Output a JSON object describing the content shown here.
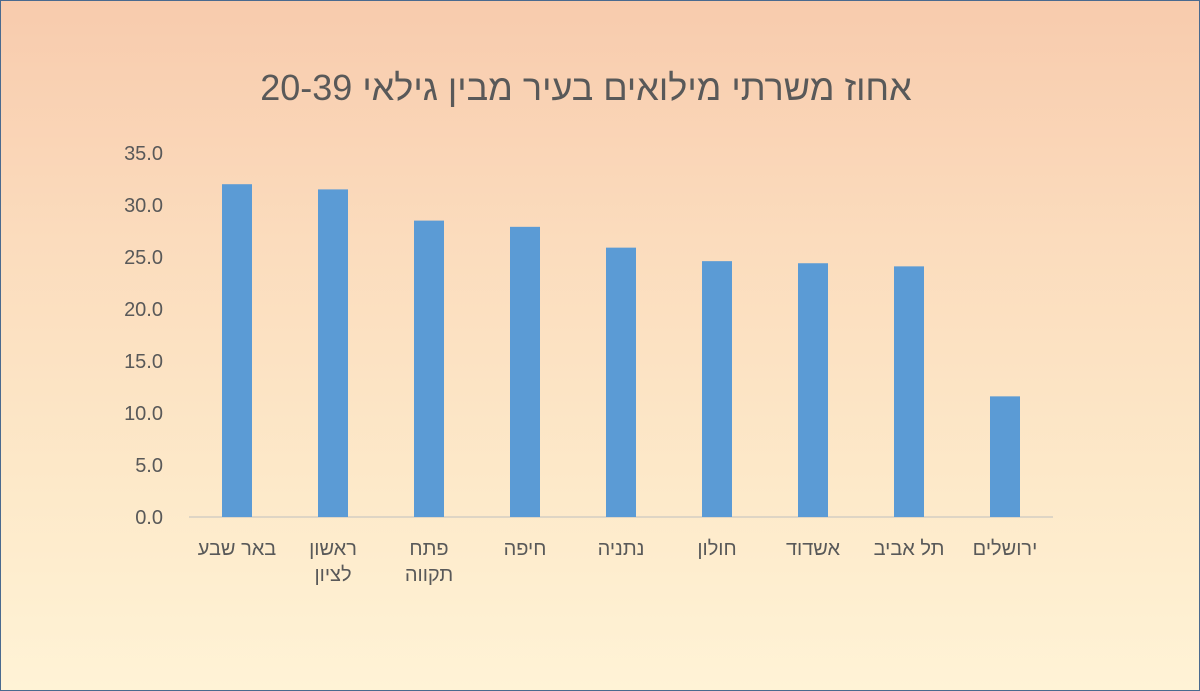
{
  "chart_data": {
    "type": "bar",
    "title": "אחוז משרתי מילואים בעיר מבין גילאי 20-39",
    "categories": [
      [
        "באר שבע"
      ],
      [
        "ראשון",
        "לציון"
      ],
      [
        "פתח",
        "תקווה"
      ],
      [
        "חיפה"
      ],
      [
        "נתניה"
      ],
      [
        "חולון"
      ],
      [
        "אשדוד"
      ],
      [
        "תל אביב"
      ],
      [
        "ירושלים"
      ]
    ],
    "values": [
      32.0,
      31.5,
      28.5,
      27.9,
      25.9,
      24.6,
      24.4,
      24.1,
      11.6
    ],
    "ylim": [
      0,
      35
    ],
    "yticks": [
      "0.0",
      "5.0",
      "10.0",
      "15.0",
      "20.0",
      "25.0",
      "30.0",
      "35.0"
    ],
    "bar_color": "#5b9bd5",
    "grid": false,
    "legend": "none"
  }
}
